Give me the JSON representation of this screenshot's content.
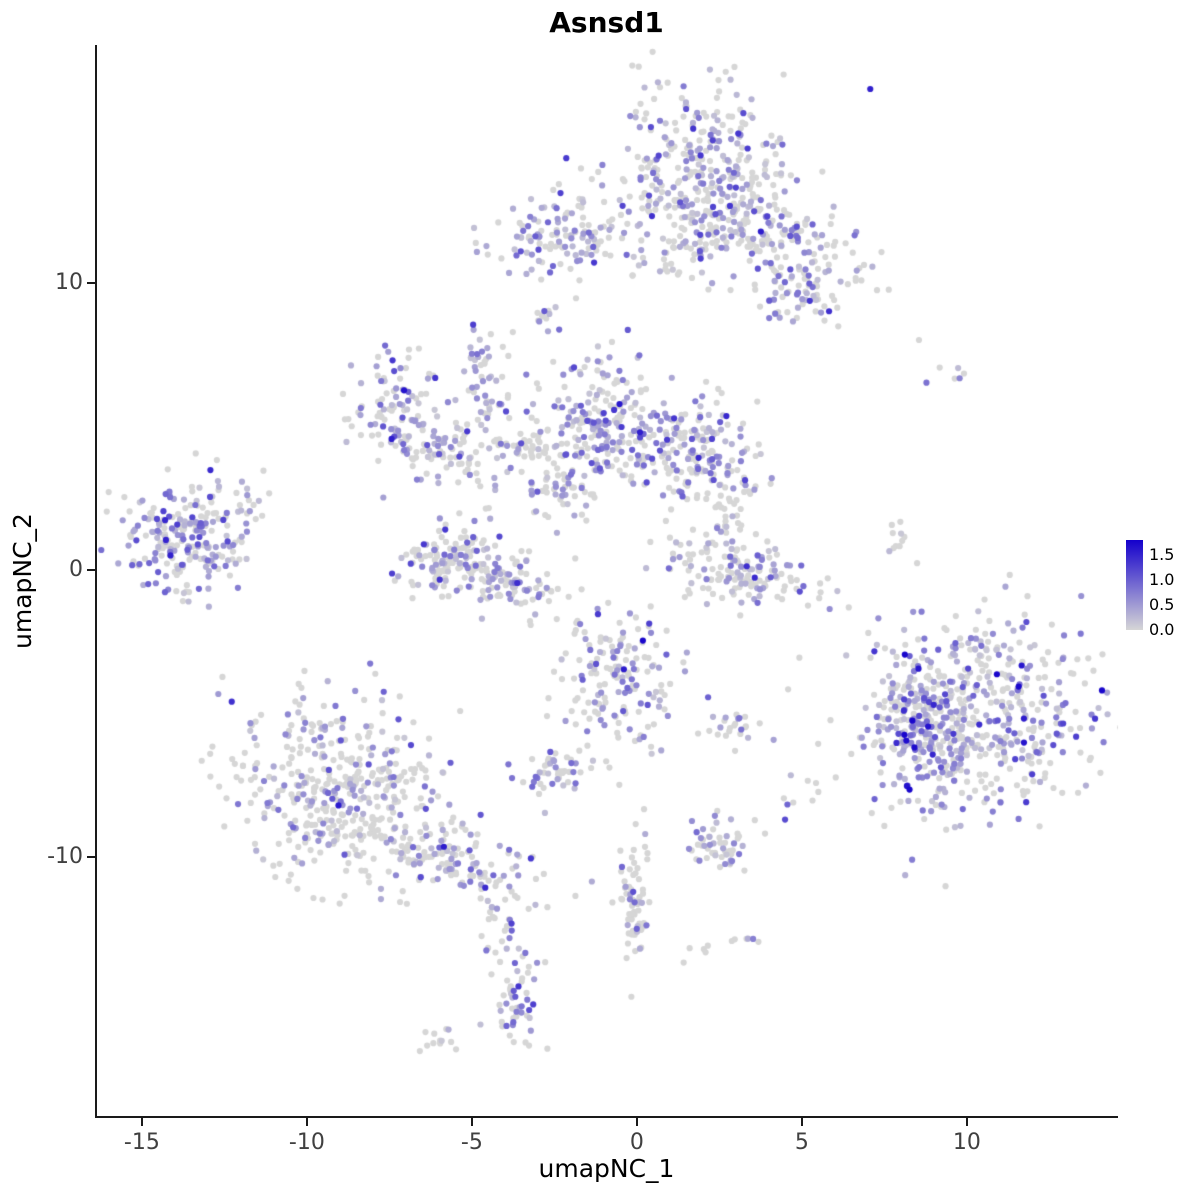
{
  "chart_data": {
    "type": "scatter",
    "title": "Asnsd1",
    "xlabel": "umapNC_1",
    "ylabel": "umapNC_2",
    "xlim": [
      -16.42,
      14.58
    ],
    "ylim": [
      -19.1,
      18.3
    ],
    "x_ticks": [
      -15,
      -10,
      -5,
      0,
      5,
      10
    ],
    "y_ticks": [
      -10,
      0,
      10
    ],
    "grid": false,
    "legend_position": "right",
    "point_radius": 3.1,
    "seed": 42,
    "colorbar": {
      "ticks": [
        1.5,
        1.0,
        0.5,
        0.0
      ],
      "min": 0.0,
      "max": 1.8,
      "low_color": "#D6D6D6",
      "high_color": "#1400CC"
    },
    "colors": {
      "axis": "#1a1a1a",
      "tick_label": "#404040",
      "title": "#000000"
    },
    "clusters": [
      {
        "name": "top-main",
        "cx": 1.8,
        "cy": 14.3,
        "sx": 1.35,
        "sy": 1.35,
        "rot": 0,
        "n": 260,
        "frac": 0.5,
        "scale": 0.55
      },
      {
        "name": "top-main-lower",
        "cx": 2.1,
        "cy": 11.8,
        "sx": 0.95,
        "sy": 1.0,
        "rot": 0,
        "n": 120,
        "frac": 0.45,
        "scale": 0.5
      },
      {
        "name": "top-right-tail",
        "cx": 4.5,
        "cy": 11.7,
        "sx": 1.6,
        "sy": 0.8,
        "rot": -35,
        "n": 140,
        "frac": 0.35,
        "scale": 0.5
      },
      {
        "name": "top-right-small",
        "cx": 4.9,
        "cy": 9.6,
        "sx": 0.7,
        "sy": 0.6,
        "rot": 0,
        "n": 60,
        "frac": 0.35,
        "scale": 0.6
      },
      {
        "name": "top-left-blob",
        "cx": -2.3,
        "cy": 11.7,
        "sx": 1.1,
        "sy": 0.75,
        "rot": 0,
        "n": 130,
        "frac": 0.5,
        "scale": 0.5
      },
      {
        "name": "tiny-top",
        "cx": -2.7,
        "cy": 8.7,
        "sx": 0.25,
        "sy": 0.3,
        "rot": 0,
        "n": 12,
        "frac": 0.5,
        "scale": 0.5
      },
      {
        "name": "top-connector",
        "cx": 0.9,
        "cy": 11.0,
        "sx": 0.5,
        "sy": 0.6,
        "rot": 0,
        "n": 20,
        "frac": 0.3,
        "scale": 0.4
      },
      {
        "name": "mid-left-1",
        "cx": -7.3,
        "cy": 5.6,
        "sx": 0.65,
        "sy": 1.0,
        "rot": 0,
        "n": 95,
        "frac": 0.55,
        "scale": 0.55
      },
      {
        "name": "mid-left-2",
        "cx": -5.8,
        "cy": 4.2,
        "sx": 0.95,
        "sy": 0.5,
        "rot": -20,
        "n": 85,
        "frac": 0.5,
        "scale": 0.5
      },
      {
        "name": "mid-connector",
        "cx": -3.3,
        "cy": 4.1,
        "sx": 0.95,
        "sy": 0.3,
        "rot": -10,
        "n": 55,
        "frac": 0.35,
        "scale": 0.45
      },
      {
        "name": "mid-small-upper",
        "cx": -4.5,
        "cy": 6.1,
        "sx": 0.35,
        "sy": 0.5,
        "rot": 0,
        "n": 30,
        "frac": 0.5,
        "scale": 0.5
      },
      {
        "name": "mid-vert-strand",
        "cx": -4.7,
        "cy": 7.4,
        "sx": 0.25,
        "sy": 0.55,
        "rot": 0,
        "n": 25,
        "frac": 0.5,
        "scale": 0.5
      },
      {
        "name": "center-main",
        "cx": -1.0,
        "cy": 5.2,
        "sx": 0.95,
        "sy": 1.1,
        "rot": 0,
        "n": 230,
        "frac": 0.5,
        "scale": 0.55
      },
      {
        "name": "center-right",
        "cx": 2.0,
        "cy": 4.0,
        "sx": 0.85,
        "sy": 0.95,
        "rot": 0,
        "n": 170,
        "frac": 0.5,
        "scale": 0.55
      },
      {
        "name": "center-down-strand",
        "cx": -2.3,
        "cy": 2.7,
        "sx": 0.5,
        "sy": 0.45,
        "rot": 0,
        "n": 40,
        "frac": 0.4,
        "scale": 0.45
      },
      {
        "name": "far-left",
        "cx": -13.7,
        "cy": 1.2,
        "sx": 1.0,
        "sy": 0.95,
        "rot": 0,
        "n": 235,
        "frac": 0.6,
        "scale": 0.55
      },
      {
        "name": "far-left-outliers",
        "cx": -11.9,
        "cy": 2.3,
        "sx": 0.4,
        "sy": 0.3,
        "rot": 0,
        "n": 12,
        "frac": 0.4,
        "scale": 0.5
      },
      {
        "name": "crescent-a",
        "cx": -5.9,
        "cy": 0.4,
        "sx": 0.85,
        "sy": 0.55,
        "rot": 40,
        "n": 115,
        "frac": 0.4,
        "scale": 0.5
      },
      {
        "name": "crescent-b",
        "cx": -4.1,
        "cy": -0.3,
        "sx": 0.95,
        "sy": 0.5,
        "rot": -25,
        "n": 115,
        "frac": 0.4,
        "scale": 0.5
      },
      {
        "name": "right-mid",
        "cx": 3.3,
        "cy": -0.1,
        "sx": 1.2,
        "sy": 0.6,
        "rot": -18,
        "n": 150,
        "frac": 0.3,
        "scale": 0.5
      },
      {
        "name": "right-mid-strand",
        "cx": 3.0,
        "cy": 1.6,
        "sx": 0.25,
        "sy": 0.6,
        "rot": 0,
        "n": 25,
        "frac": 0.35,
        "scale": 0.45
      },
      {
        "name": "lone-right",
        "cx": 7.8,
        "cy": 0.9,
        "sx": 0.2,
        "sy": 0.35,
        "rot": 0,
        "n": 10,
        "frac": 0.3,
        "scale": 0.4
      },
      {
        "name": "tiny-right-top",
        "cx": 9.6,
        "cy": 6.9,
        "sx": 0.3,
        "sy": 0.25,
        "rot": 0,
        "n": 6,
        "frac": 0.3,
        "scale": 0.4
      },
      {
        "name": "big-right-core",
        "cx": 10.4,
        "cy": -5.0,
        "sx": 1.9,
        "sy": 1.7,
        "rot": 0,
        "n": 520,
        "frac": 0.5,
        "scale": 0.6
      },
      {
        "name": "big-right-edge",
        "cx": 8.6,
        "cy": -5.6,
        "sx": 0.7,
        "sy": 1.1,
        "rot": 0,
        "n": 160,
        "frac": 0.7,
        "scale": 0.6
      },
      {
        "name": "bottom-left-main",
        "cx": -8.8,
        "cy": -7.7,
        "sx": 1.6,
        "sy": 1.7,
        "rot": 0,
        "n": 430,
        "frac": 0.3,
        "scale": 0.5
      },
      {
        "name": "bottom-left-tail",
        "cx": -5.8,
        "cy": -9.9,
        "sx": 1.5,
        "sy": 0.55,
        "rot": -22,
        "n": 140,
        "frac": 0.4,
        "scale": 0.55
      },
      {
        "name": "center-bottom",
        "cx": -0.6,
        "cy": -3.8,
        "sx": 0.85,
        "sy": 1.3,
        "rot": 0,
        "n": 165,
        "frac": 0.45,
        "scale": 0.55
      },
      {
        "name": "small-mid-bottom",
        "cx": -2.5,
        "cy": -7.1,
        "sx": 0.55,
        "sy": 0.4,
        "rot": 0,
        "n": 45,
        "frac": 0.5,
        "scale": 0.5
      },
      {
        "name": "small-right-blob",
        "cx": 3.0,
        "cy": -5.4,
        "sx": 0.5,
        "sy": 0.35,
        "rot": 0,
        "n": 25,
        "frac": 0.3,
        "scale": 0.45
      },
      {
        "name": "strand-down",
        "cx": -0.1,
        "cy": -11.5,
        "sx": 0.25,
        "sy": 1.15,
        "rot": 0,
        "n": 70,
        "frac": 0.2,
        "scale": 0.45
      },
      {
        "name": "blob-bottom-mid",
        "cx": 2.4,
        "cy": -9.6,
        "sx": 0.55,
        "sy": 0.45,
        "rot": 0,
        "n": 55,
        "frac": 0.45,
        "scale": 0.55
      },
      {
        "name": "tail-trail",
        "cx": -4.2,
        "cy": -12.2,
        "sx": 0.3,
        "sy": 0.8,
        "rot": 0,
        "n": 25,
        "frac": 0.4,
        "scale": 0.5
      },
      {
        "name": "bottom-purple",
        "cx": -3.6,
        "cy": -15.0,
        "sx": 0.4,
        "sy": 0.85,
        "rot": 0,
        "n": 55,
        "frac": 0.55,
        "scale": 0.55
      },
      {
        "name": "tiny-bottom",
        "cx": -6.0,
        "cy": -16.5,
        "sx": 0.3,
        "sy": 0.25,
        "rot": 0,
        "n": 12,
        "frac": 0.3,
        "scale": 0.4
      },
      {
        "name": "dots-a",
        "cx": 4.9,
        "cy": -7.5,
        "sx": 0.3,
        "sy": 0.3,
        "rot": 0,
        "n": 8,
        "frac": 0.4,
        "scale": 0.5
      },
      {
        "name": "dots-b",
        "cx": 3.3,
        "cy": -12.7,
        "sx": 0.25,
        "sy": 0.3,
        "rot": 0,
        "n": 6,
        "frac": 0.3,
        "scale": 0.4
      },
      {
        "name": "dots-c",
        "cx": 1.7,
        "cy": -13.6,
        "sx": 0.25,
        "sy": 0.25,
        "rot": 0,
        "n": 5,
        "frac": 0.3,
        "scale": 0.4
      }
    ]
  }
}
